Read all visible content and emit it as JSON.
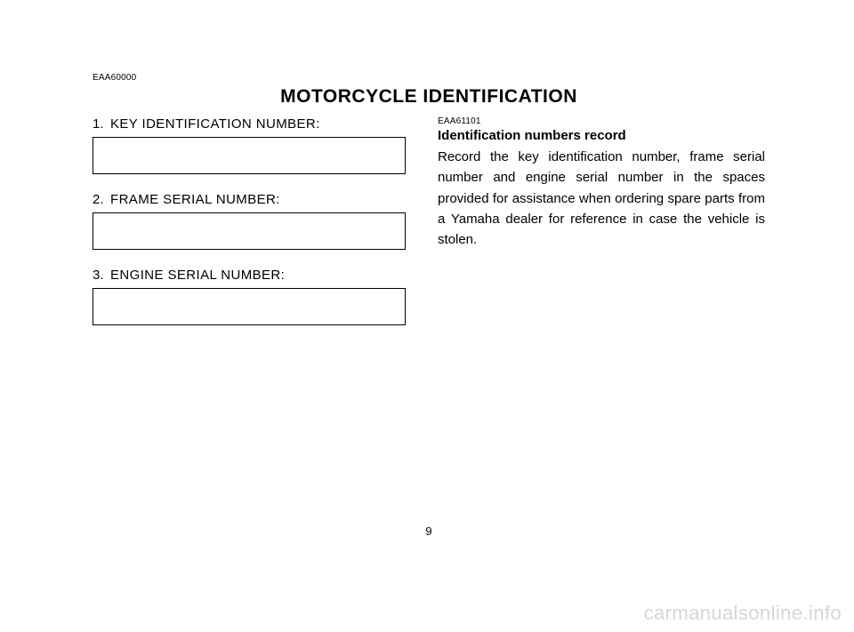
{
  "header": {
    "doc_code": "EAA60000",
    "title": "MOTORCYCLE IDENTIFICATION"
  },
  "left": {
    "fields": [
      {
        "num": "1.",
        "label": "KEY IDENTIFICATION NUMBER:"
      },
      {
        "num": "2.",
        "label": "FRAME SERIAL NUMBER:"
      },
      {
        "num": "3.",
        "label": "ENGINE SERIAL NUMBER:"
      }
    ]
  },
  "right": {
    "doc_code": "EAA61101",
    "heading": "Identification numbers record",
    "body": "Record the key identification number, frame serial number and engine serial number in the spaces provided for assistance when ordering spare parts from a Yamaha dealer for reference in case the vehicle is stolen."
  },
  "page_number": "9",
  "watermark": "carmanualsonline.info"
}
